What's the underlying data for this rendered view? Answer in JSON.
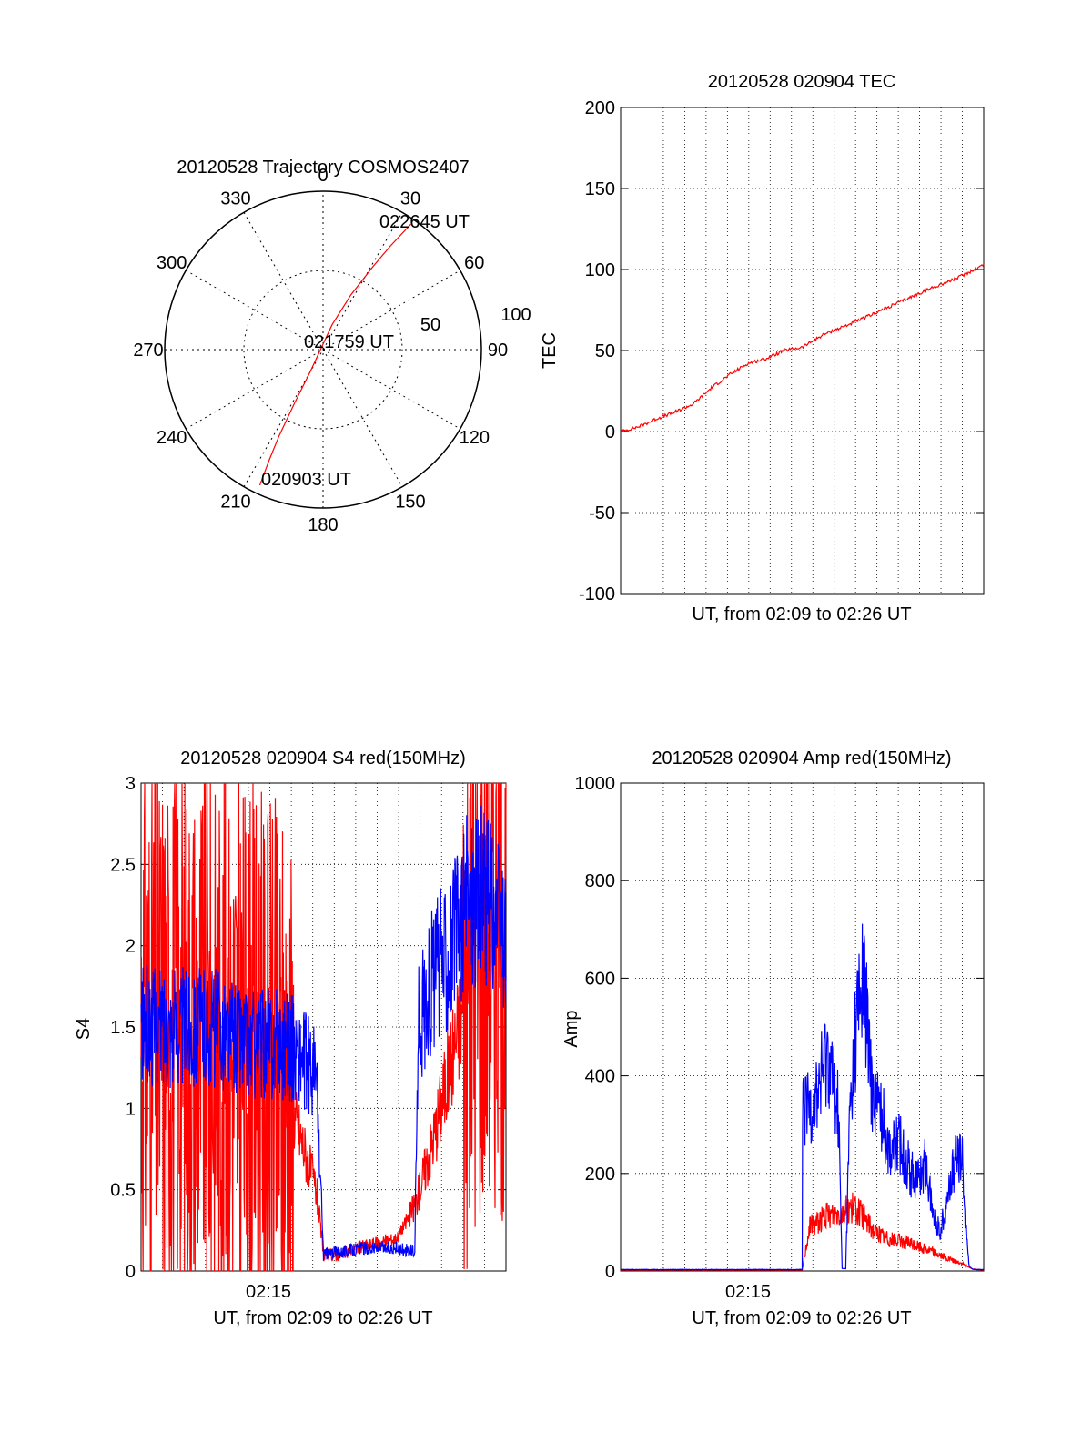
{
  "colors": {
    "red": "#ff0000",
    "blue": "#0000ff",
    "axis": "#000000",
    "grid": "#000000"
  },
  "chart_data": [
    {
      "id": "polar",
      "type": "scatter",
      "title": "20120528 Trajectory COSMOS2407",
      "projection": "polar-azimuth-elevation",
      "azimuth_labels": [
        "0",
        "30",
        "60",
        "90",
        "120",
        "150",
        "180",
        "210",
        "240",
        "270",
        "300",
        "330"
      ],
      "radial_labels": [
        "50",
        "100"
      ],
      "grid": true,
      "track_points": [
        {
          "az": 35,
          "el": 3
        },
        {
          "az": 33,
          "el": 20
        },
        {
          "az": 31,
          "el": 35
        },
        {
          "az": 27,
          "el": 55
        },
        {
          "az": 20,
          "el": 75
        },
        {
          "az": 210,
          "el": 75
        },
        {
          "az": 208,
          "el": 55
        },
        {
          "az": 207,
          "el": 35
        },
        {
          "az": 206,
          "el": 20
        },
        {
          "az": 205,
          "el": 5
        }
      ],
      "annotations": [
        "022645 UT",
        "021759 UT",
        "020903 UT"
      ]
    },
    {
      "id": "tec",
      "type": "line",
      "title": "20120528 020904 TEC",
      "xlabel": "UT, from 02:09 to 02:26 UT",
      "ylabel": "TEC",
      "ylim": [
        -100,
        200
      ],
      "yticks": [
        "200",
        "150",
        "100",
        "50",
        "0",
        "-50",
        "-100"
      ],
      "grid": true,
      "series": [
        {
          "color": "red",
          "points": [
            [
              0,
              0
            ],
            [
              0.05,
              3
            ],
            [
              0.1,
              8
            ],
            [
              0.15,
              12
            ],
            [
              0.2,
              17
            ],
            [
              0.25,
              27
            ],
            [
              0.3,
              35
            ],
            [
              0.35,
              42
            ],
            [
              0.4,
              45
            ],
            [
              0.45,
              50
            ],
            [
              0.5,
              52
            ],
            [
              0.56,
              60
            ],
            [
              0.65,
              68
            ],
            [
              0.75,
              78
            ],
            [
              0.85,
              88
            ],
            [
              0.93,
              95
            ],
            [
              1,
              103
            ]
          ]
        }
      ]
    },
    {
      "id": "s4",
      "type": "line",
      "title": "20120528 020904 S4 red(150MHz)",
      "xlabel": "UT, from 02:09 to 02:26 UT",
      "ylabel": "S4",
      "ylim": [
        0,
        3
      ],
      "yticks": [
        "3",
        "2.5",
        "2",
        "1.5",
        "1",
        "0.5",
        "0"
      ],
      "xtick_label": "02:15",
      "grid": true,
      "series": [
        {
          "color": "red",
          "points": [
            [
              0,
              1.5
            ],
            [
              0.1,
              1.5
            ],
            [
              0.2,
              1.4
            ],
            [
              0.3,
              1.3
            ],
            [
              0.4,
              1.1
            ],
            [
              0.48,
              0.5
            ],
            [
              0.5,
              0.1
            ],
            [
              0.55,
              0.1
            ],
            [
              0.6,
              0.15
            ],
            [
              0.7,
              0.2
            ],
            [
              0.75,
              0.4
            ],
            [
              0.8,
              0.8
            ],
            [
              0.85,
              1.3
            ],
            [
              0.9,
              1.8
            ],
            [
              0.95,
              2.2
            ],
            [
              1,
              2.0
            ]
          ]
        },
        {
          "color": "blue",
          "points": [
            [
              0,
              1.5
            ],
            [
              0.1,
              1.5
            ],
            [
              0.2,
              1.5
            ],
            [
              0.3,
              1.4
            ],
            [
              0.4,
              1.4
            ],
            [
              0.48,
              1.2
            ],
            [
              0.5,
              0.1
            ],
            [
              0.55,
              0.12
            ],
            [
              0.6,
              0.14
            ],
            [
              0.7,
              0.14
            ],
            [
              0.75,
              0.12
            ],
            [
              0.76,
              1.5
            ],
            [
              0.8,
              1.8
            ],
            [
              0.85,
              2.0
            ],
            [
              0.9,
              2.3
            ],
            [
              0.95,
              2.3
            ],
            [
              1,
              2.0
            ]
          ]
        }
      ]
    },
    {
      "id": "amp",
      "type": "line",
      "title": "20120528 020904 Amp red(150MHz)",
      "xlabel": "UT, from 02:09 to 02:26 UT",
      "ylabel": "Amp",
      "ylim": [
        0,
        1000
      ],
      "yticks": [
        "1000",
        "800",
        "600",
        "400",
        "200",
        "0"
      ],
      "xtick_label": "02:15",
      "grid": true,
      "series": [
        {
          "color": "blue",
          "points": [
            [
              0,
              3
            ],
            [
              0.5,
              3
            ],
            [
              0.5,
              320
            ],
            [
              0.54,
              360
            ],
            [
              0.57,
              450
            ],
            [
              0.6,
              330
            ],
            [
              0.61,
              5
            ],
            [
              0.62,
              5
            ],
            [
              0.63,
              300
            ],
            [
              0.65,
              520
            ],
            [
              0.67,
              600
            ],
            [
              0.69,
              380
            ],
            [
              0.72,
              320
            ],
            [
              0.74,
              250
            ],
            [
              0.77,
              260
            ],
            [
              0.8,
              200
            ],
            [
              0.82,
              190
            ],
            [
              0.84,
              220
            ],
            [
              0.86,
              120
            ],
            [
              0.88,
              80
            ],
            [
              0.9,
              150
            ],
            [
              0.92,
              220
            ],
            [
              0.94,
              240
            ],
            [
              0.95,
              100
            ],
            [
              0.96,
              10
            ],
            [
              0.97,
              3
            ],
            [
              1,
              3
            ]
          ]
        },
        {
          "color": "red",
          "points": [
            [
              0,
              2
            ],
            [
              0.5,
              2
            ],
            [
              0.52,
              90
            ],
            [
              0.56,
              110
            ],
            [
              0.6,
              120
            ],
            [
              0.64,
              130
            ],
            [
              0.67,
              110
            ],
            [
              0.7,
              80
            ],
            [
              0.74,
              65
            ],
            [
              0.78,
              60
            ],
            [
              0.82,
              50
            ],
            [
              0.86,
              40
            ],
            [
              0.9,
              25
            ],
            [
              0.94,
              15
            ],
            [
              0.97,
              4
            ],
            [
              1,
              2
            ]
          ]
        }
      ]
    }
  ]
}
